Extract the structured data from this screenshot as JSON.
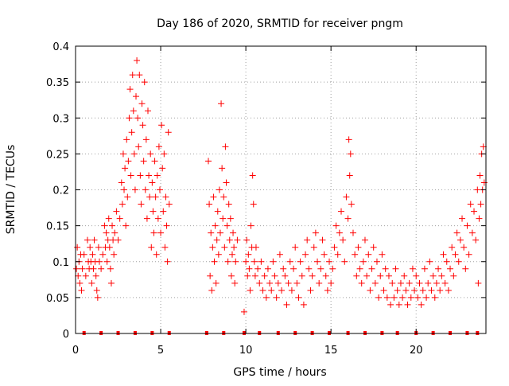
{
  "chart_data": {
    "type": "scatter",
    "title": "Day 186 of 2020, SRMTID for receiver pngm",
    "xlabel": "GPS time / hours",
    "ylabel": "SRMTID / TECUs",
    "xlim": [
      0,
      24.1
    ],
    "ylim": [
      0,
      0.4
    ],
    "xticks": [
      0,
      5,
      10,
      15,
      20
    ],
    "xtick_labels": [
      "0",
      "5",
      "10",
      "15",
      "20"
    ],
    "yticks": [
      0,
      0.05,
      0.1,
      0.15,
      0.2,
      0.25,
      0.3,
      0.35,
      0.4
    ],
    "ytick_labels": [
      "0",
      "0.05",
      "0.1",
      "0.15",
      "0.2",
      "0.25",
      "0.3",
      "0.35",
      "0.4"
    ],
    "grid": true,
    "marker": "plus",
    "series": [
      {
        "name": "SRMTID",
        "color": "#ff0000",
        "points": [
          [
            0.05,
            0.09
          ],
          [
            0.1,
            0.12
          ],
          [
            0.15,
            0.08
          ],
          [
            0.2,
            0.1
          ],
          [
            0.25,
            0.07
          ],
          [
            0.3,
            0.11
          ],
          [
            0.35,
            0.06
          ],
          [
            0.4,
            0.09
          ],
          [
            0.5,
            0.11
          ],
          [
            0.6,
            0.08
          ],
          [
            0.7,
            0.13
          ],
          [
            0.75,
            0.1
          ],
          [
            0.8,
            0.09
          ],
          [
            0.85,
            0.12
          ],
          [
            0.9,
            0.1
          ],
          [
            0.95,
            0.07
          ],
          [
            1.0,
            0.11
          ],
          [
            1.05,
            0.09
          ],
          [
            1.1,
            0.13
          ],
          [
            1.15,
            0.1
          ],
          [
            1.2,
            0.08
          ],
          [
            1.25,
            0.06
          ],
          [
            1.3,
            0.05
          ],
          [
            1.35,
            0.12
          ],
          [
            1.4,
            0.1
          ],
          [
            1.5,
            0.09
          ],
          [
            1.6,
            0.11
          ],
          [
            1.7,
            0.15
          ],
          [
            1.75,
            0.12
          ],
          [
            1.8,
            0.14
          ],
          [
            1.85,
            0.1
          ],
          [
            1.9,
            0.13
          ],
          [
            1.95,
            0.16
          ],
          [
            2.0,
            0.12
          ],
          [
            2.05,
            0.09
          ],
          [
            2.1,
            0.07
          ],
          [
            2.15,
            0.15
          ],
          [
            2.2,
            0.13
          ],
          [
            2.25,
            0.11
          ],
          [
            2.3,
            0.14
          ],
          [
            2.4,
            0.17
          ],
          [
            2.5,
            0.13
          ],
          [
            2.6,
            0.16
          ],
          [
            2.7,
            0.21
          ],
          [
            2.75,
            0.18
          ],
          [
            2.8,
            0.25
          ],
          [
            2.85,
            0.2
          ],
          [
            2.9,
            0.23
          ],
          [
            2.95,
            0.15
          ],
          [
            3.0,
            0.27
          ],
          [
            3.05,
            0.19
          ],
          [
            3.1,
            0.24
          ],
          [
            3.15,
            0.3
          ],
          [
            3.2,
            0.34
          ],
          [
            3.25,
            0.22
          ],
          [
            3.3,
            0.28
          ],
          [
            3.35,
            0.36
          ],
          [
            3.4,
            0.31
          ],
          [
            3.45,
            0.25
          ],
          [
            3.5,
            0.2
          ],
          [
            3.55,
            0.33
          ],
          [
            3.6,
            0.38
          ],
          [
            3.65,
            0.3
          ],
          [
            3.7,
            0.26
          ],
          [
            3.75,
            0.36
          ],
          [
            3.8,
            0.22
          ],
          [
            3.85,
            0.18
          ],
          [
            3.9,
            0.32
          ],
          [
            3.95,
            0.29
          ],
          [
            4.0,
            0.24
          ],
          [
            4.05,
            0.35
          ],
          [
            4.1,
            0.2
          ],
          [
            4.15,
            0.27
          ],
          [
            4.2,
            0.16
          ],
          [
            4.25,
            0.31
          ],
          [
            4.3,
            0.22
          ],
          [
            4.35,
            0.19
          ],
          [
            4.4,
            0.25
          ],
          [
            4.45,
            0.12
          ],
          [
            4.5,
            0.21
          ],
          [
            4.55,
            0.17
          ],
          [
            4.6,
            0.14
          ],
          [
            4.65,
            0.24
          ],
          [
            4.7,
            0.19
          ],
          [
            4.75,
            0.11
          ],
          [
            4.8,
            0.22
          ],
          [
            4.85,
            0.16
          ],
          [
            4.9,
            0.26
          ],
          [
            4.95,
            0.2
          ],
          [
            5.0,
            0.14
          ],
          [
            5.05,
            0.29
          ],
          [
            5.1,
            0.23
          ],
          [
            5.15,
            0.17
          ],
          [
            5.2,
            0.25
          ],
          [
            5.25,
            0.12
          ],
          [
            5.3,
            0.19
          ],
          [
            5.35,
            0.15
          ],
          [
            5.4,
            0.1
          ],
          [
            5.45,
            0.28
          ],
          [
            5.5,
            0.18
          ],
          [
            7.8,
            0.24
          ],
          [
            7.85,
            0.18
          ],
          [
            7.9,
            0.08
          ],
          [
            7.95,
            0.14
          ],
          [
            8.0,
            0.06
          ],
          [
            8.05,
            0.12
          ],
          [
            8.1,
            0.19
          ],
          [
            8.15,
            0.1
          ],
          [
            8.2,
            0.15
          ],
          [
            8.25,
            0.07
          ],
          [
            8.3,
            0.13
          ],
          [
            8.35,
            0.17
          ],
          [
            8.4,
            0.11
          ],
          [
            8.45,
            0.2
          ],
          [
            8.5,
            0.14
          ],
          [
            8.55,
            0.32
          ],
          [
            8.6,
            0.23
          ],
          [
            8.65,
            0.16
          ],
          [
            8.7,
            0.19
          ],
          [
            8.75,
            0.12
          ],
          [
            8.8,
            0.26
          ],
          [
            8.85,
            0.21
          ],
          [
            8.9,
            0.15
          ],
          [
            8.95,
            0.1
          ],
          [
            9.0,
            0.18
          ],
          [
            9.05,
            0.13
          ],
          [
            9.1,
            0.16
          ],
          [
            9.15,
            0.08
          ],
          [
            9.2,
            0.11
          ],
          [
            9.25,
            0.14
          ],
          [
            9.3,
            0.12
          ],
          [
            9.35,
            0.07
          ],
          [
            9.4,
            0.1
          ],
          [
            9.5,
            0.13
          ],
          [
            9.9,
            0.03
          ],
          [
            10.0,
            0.1
          ],
          [
            10.05,
            0.13
          ],
          [
            10.1,
            0.08
          ],
          [
            10.15,
            0.11
          ],
          [
            10.2,
            0.09
          ],
          [
            10.25,
            0.06
          ],
          [
            10.3,
            0.15
          ],
          [
            10.35,
            0.12
          ],
          [
            10.4,
            0.22
          ],
          [
            10.45,
            0.18
          ],
          [
            10.5,
            0.1
          ],
          [
            10.55,
            0.08
          ],
          [
            10.6,
            0.12
          ],
          [
            10.7,
            0.09
          ],
          [
            10.8,
            0.07
          ],
          [
            10.9,
            0.1
          ],
          [
            11.0,
            0.06
          ],
          [
            11.1,
            0.08
          ],
          [
            11.2,
            0.05
          ],
          [
            11.3,
            0.09
          ],
          [
            11.4,
            0.07
          ],
          [
            11.5,
            0.06
          ],
          [
            11.6,
            0.1
          ],
          [
            11.7,
            0.08
          ],
          [
            11.8,
            0.05
          ],
          [
            11.9,
            0.07
          ],
          [
            12.0,
            0.11
          ],
          [
            12.1,
            0.06
          ],
          [
            12.2,
            0.09
          ],
          [
            12.3,
            0.08
          ],
          [
            12.4,
            0.04
          ],
          [
            12.5,
            0.07
          ],
          [
            12.6,
            0.1
          ],
          [
            12.7,
            0.06
          ],
          [
            12.8,
            0.09
          ],
          [
            12.9,
            0.12
          ],
          [
            13.0,
            0.07
          ],
          [
            13.1,
            0.05
          ],
          [
            13.2,
            0.1
          ],
          [
            13.3,
            0.08
          ],
          [
            13.4,
            0.04
          ],
          [
            13.5,
            0.11
          ],
          [
            13.6,
            0.13
          ],
          [
            13.7,
            0.09
          ],
          [
            13.8,
            0.06
          ],
          [
            13.9,
            0.08
          ],
          [
            14.0,
            0.12
          ],
          [
            14.1,
            0.14
          ],
          [
            14.2,
            0.1
          ],
          [
            14.3,
            0.07
          ],
          [
            14.4,
            0.09
          ],
          [
            14.5,
            0.13
          ],
          [
            14.6,
            0.11
          ],
          [
            14.7,
            0.08
          ],
          [
            14.8,
            0.06
          ],
          [
            14.9,
            0.1
          ],
          [
            15.0,
            0.07
          ],
          [
            15.1,
            0.09
          ],
          [
            15.2,
            0.12
          ],
          [
            15.3,
            0.15
          ],
          [
            15.4,
            0.11
          ],
          [
            15.5,
            0.14
          ],
          [
            15.6,
            0.17
          ],
          [
            15.7,
            0.13
          ],
          [
            15.8,
            0.1
          ],
          [
            15.9,
            0.19
          ],
          [
            16.0,
            0.16
          ],
          [
            16.05,
            0.27
          ],
          [
            16.1,
            0.22
          ],
          [
            16.15,
            0.25
          ],
          [
            16.2,
            0.18
          ],
          [
            16.3,
            0.14
          ],
          [
            16.4,
            0.11
          ],
          [
            16.5,
            0.08
          ],
          [
            16.6,
            0.12
          ],
          [
            16.7,
            0.09
          ],
          [
            16.8,
            0.07
          ],
          [
            16.9,
            0.1
          ],
          [
            17.0,
            0.13
          ],
          [
            17.1,
            0.08
          ],
          [
            17.2,
            0.11
          ],
          [
            17.3,
            0.06
          ],
          [
            17.4,
            0.09
          ],
          [
            17.5,
            0.12
          ],
          [
            17.6,
            0.07
          ],
          [
            17.7,
            0.1
          ],
          [
            17.8,
            0.05
          ],
          [
            17.9,
            0.08
          ],
          [
            18.0,
            0.11
          ],
          [
            18.1,
            0.06
          ],
          [
            18.2,
            0.09
          ],
          [
            18.3,
            0.05
          ],
          [
            18.4,
            0.08
          ],
          [
            18.5,
            0.04
          ],
          [
            18.6,
            0.07
          ],
          [
            18.7,
            0.05
          ],
          [
            18.8,
            0.09
          ],
          [
            18.9,
            0.06
          ],
          [
            19.0,
            0.04
          ],
          [
            19.1,
            0.07
          ],
          [
            19.2,
            0.05
          ],
          [
            19.3,
            0.08
          ],
          [
            19.4,
            0.06
          ],
          [
            19.5,
            0.04
          ],
          [
            19.6,
            0.07
          ],
          [
            19.7,
            0.05
          ],
          [
            19.8,
            0.09
          ],
          [
            19.9,
            0.06
          ],
          [
            20.0,
            0.08
          ],
          [
            20.1,
            0.05
          ],
          [
            20.2,
            0.07
          ],
          [
            20.3,
            0.04
          ],
          [
            20.4,
            0.06
          ],
          [
            20.5,
            0.09
          ],
          [
            20.6,
            0.05
          ],
          [
            20.7,
            0.07
          ],
          [
            20.8,
            0.1
          ],
          [
            20.9,
            0.06
          ],
          [
            21.0,
            0.08
          ],
          [
            21.1,
            0.05
          ],
          [
            21.2,
            0.07
          ],
          [
            21.3,
            0.09
          ],
          [
            21.4,
            0.06
          ],
          [
            21.5,
            0.08
          ],
          [
            21.6,
            0.11
          ],
          [
            21.7,
            0.07
          ],
          [
            21.8,
            0.1
          ],
          [
            21.9,
            0.06
          ],
          [
            22.0,
            0.09
          ],
          [
            22.1,
            0.12
          ],
          [
            22.2,
            0.08
          ],
          [
            22.3,
            0.11
          ],
          [
            22.4,
            0.14
          ],
          [
            22.5,
            0.1
          ],
          [
            22.6,
            0.13
          ],
          [
            22.7,
            0.16
          ],
          [
            22.8,
            0.12
          ],
          [
            22.9,
            0.09
          ],
          [
            23.0,
            0.15
          ],
          [
            23.1,
            0.11
          ],
          [
            23.2,
            0.18
          ],
          [
            23.3,
            0.14
          ],
          [
            23.4,
            0.17
          ],
          [
            23.5,
            0.13
          ],
          [
            23.6,
            0.2
          ],
          [
            23.65,
            0.07
          ],
          [
            23.7,
            0.16
          ],
          [
            23.75,
            0.22
          ],
          [
            23.8,
            0.18
          ],
          [
            23.85,
            0.25
          ],
          [
            23.9,
            0.2
          ],
          [
            23.95,
            0.26
          ],
          [
            24.0,
            0.21
          ]
        ]
      },
      {
        "name": "baseline markers",
        "color": "#ff0000",
        "marker": "square",
        "points": [
          [
            0.5,
            0
          ],
          [
            1.5,
            0
          ],
          [
            2.5,
            0
          ],
          [
            3.5,
            0
          ],
          [
            4.5,
            0
          ],
          [
            5.5,
            0
          ],
          [
            7.7,
            0
          ],
          [
            8.7,
            0
          ],
          [
            9.9,
            0
          ],
          [
            10.8,
            0
          ],
          [
            11.9,
            0
          ],
          [
            12.9,
            0
          ],
          [
            13.9,
            0
          ],
          [
            14.9,
            0
          ],
          [
            16.0,
            0
          ],
          [
            17.0,
            0
          ],
          [
            18.0,
            0
          ],
          [
            18.9,
            0
          ],
          [
            20.0,
            0
          ],
          [
            21.0,
            0
          ],
          [
            22.0,
            0
          ],
          [
            23.0,
            0
          ],
          [
            23.6,
            0
          ]
        ]
      }
    ]
  }
}
